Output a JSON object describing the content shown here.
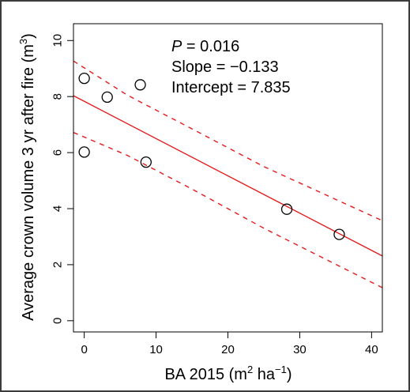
{
  "chart_data": {
    "type": "scatter",
    "xlabel": {
      "base": "BA 2015 (m",
      "sup1": "2",
      "mid": " ha",
      "sup2": "−1",
      "end": ")"
    },
    "ylabel": {
      "base": "Average crown volume 3 yr after fire (m",
      "sup": "3",
      "end": ")"
    },
    "xlim": [
      -1.5,
      41.5
    ],
    "ylim": [
      -0.4,
      10.6
    ],
    "x_ticks": [
      0,
      10,
      20,
      30,
      40
    ],
    "y_ticks": [
      0,
      2,
      4,
      6,
      8,
      10
    ],
    "grid": false,
    "points": [
      {
        "x": 0.0,
        "y": 8.65
      },
      {
        "x": 3.2,
        "y": 7.98
      },
      {
        "x": 7.8,
        "y": 8.42
      },
      {
        "x": 0.0,
        "y": 6.02
      },
      {
        "x": 8.6,
        "y": 5.66
      },
      {
        "x": 28.2,
        "y": 3.98
      },
      {
        "x": 35.5,
        "y": 3.08
      }
    ],
    "fit": {
      "type": "solid",
      "color": "#e41a1c",
      "points": [
        [
          -1.5,
          8.03
        ],
        [
          41.5,
          2.31
        ]
      ]
    },
    "confidence_band": {
      "color": "#e41a1c",
      "style": "dashed",
      "upper": [
        [
          -1.5,
          9.27
        ],
        [
          6,
          8.05
        ],
        [
          15,
          6.85
        ],
        [
          25,
          5.5
        ],
        [
          41.5,
          3.57
        ]
      ],
      "lower": [
        [
          -1.5,
          6.72
        ],
        [
          6,
          5.9
        ],
        [
          15,
          4.7
        ],
        [
          25,
          3.3
        ],
        [
          41.5,
          1.18
        ]
      ]
    },
    "annotation": {
      "p_label": "P",
      "p_value": " = 0.016",
      "slope": "Slope = −0.133",
      "intercept": "Intercept = 7.835"
    }
  }
}
